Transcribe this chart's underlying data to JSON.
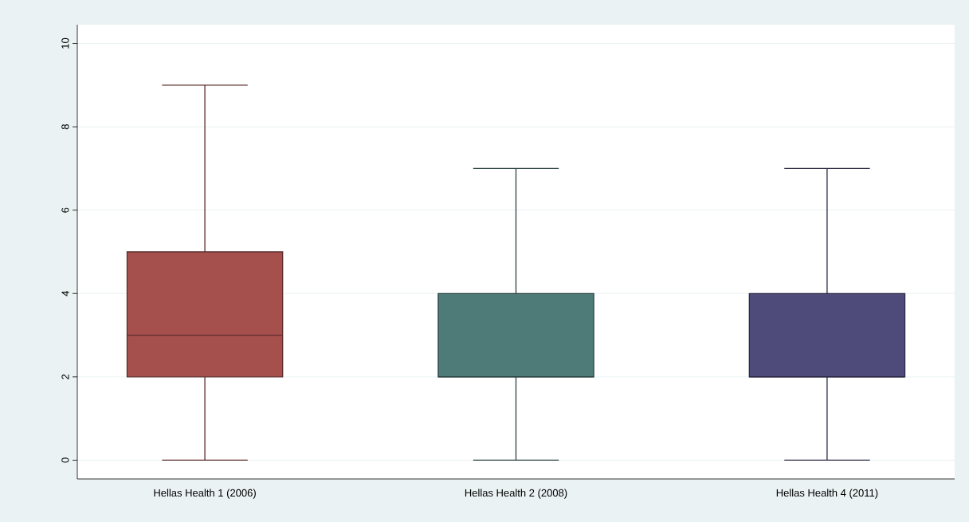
{
  "chart_data": {
    "type": "box",
    "categories": [
      "Hellas Health 1 (2006)",
      "Hellas Health 2 (2008)",
      "Hellas Health 4 (2011)"
    ],
    "boxes": [
      {
        "low": 0,
        "q1": 2,
        "median": 3,
        "q3": 5,
        "high": 9
      },
      {
        "low": 0,
        "q1": 2,
        "median": 2,
        "q3": 4,
        "high": 7
      },
      {
        "low": 0,
        "q1": 2,
        "median": 2,
        "q3": 4,
        "high": 7
      }
    ],
    "colors": [
      "#a6504e",
      "#4e7a78",
      "#4e4b7a"
    ],
    "ylim": [
      -0.45,
      10.45
    ],
    "yticks": [
      0,
      2,
      4,
      6,
      8,
      10
    ],
    "grid": "y"
  }
}
